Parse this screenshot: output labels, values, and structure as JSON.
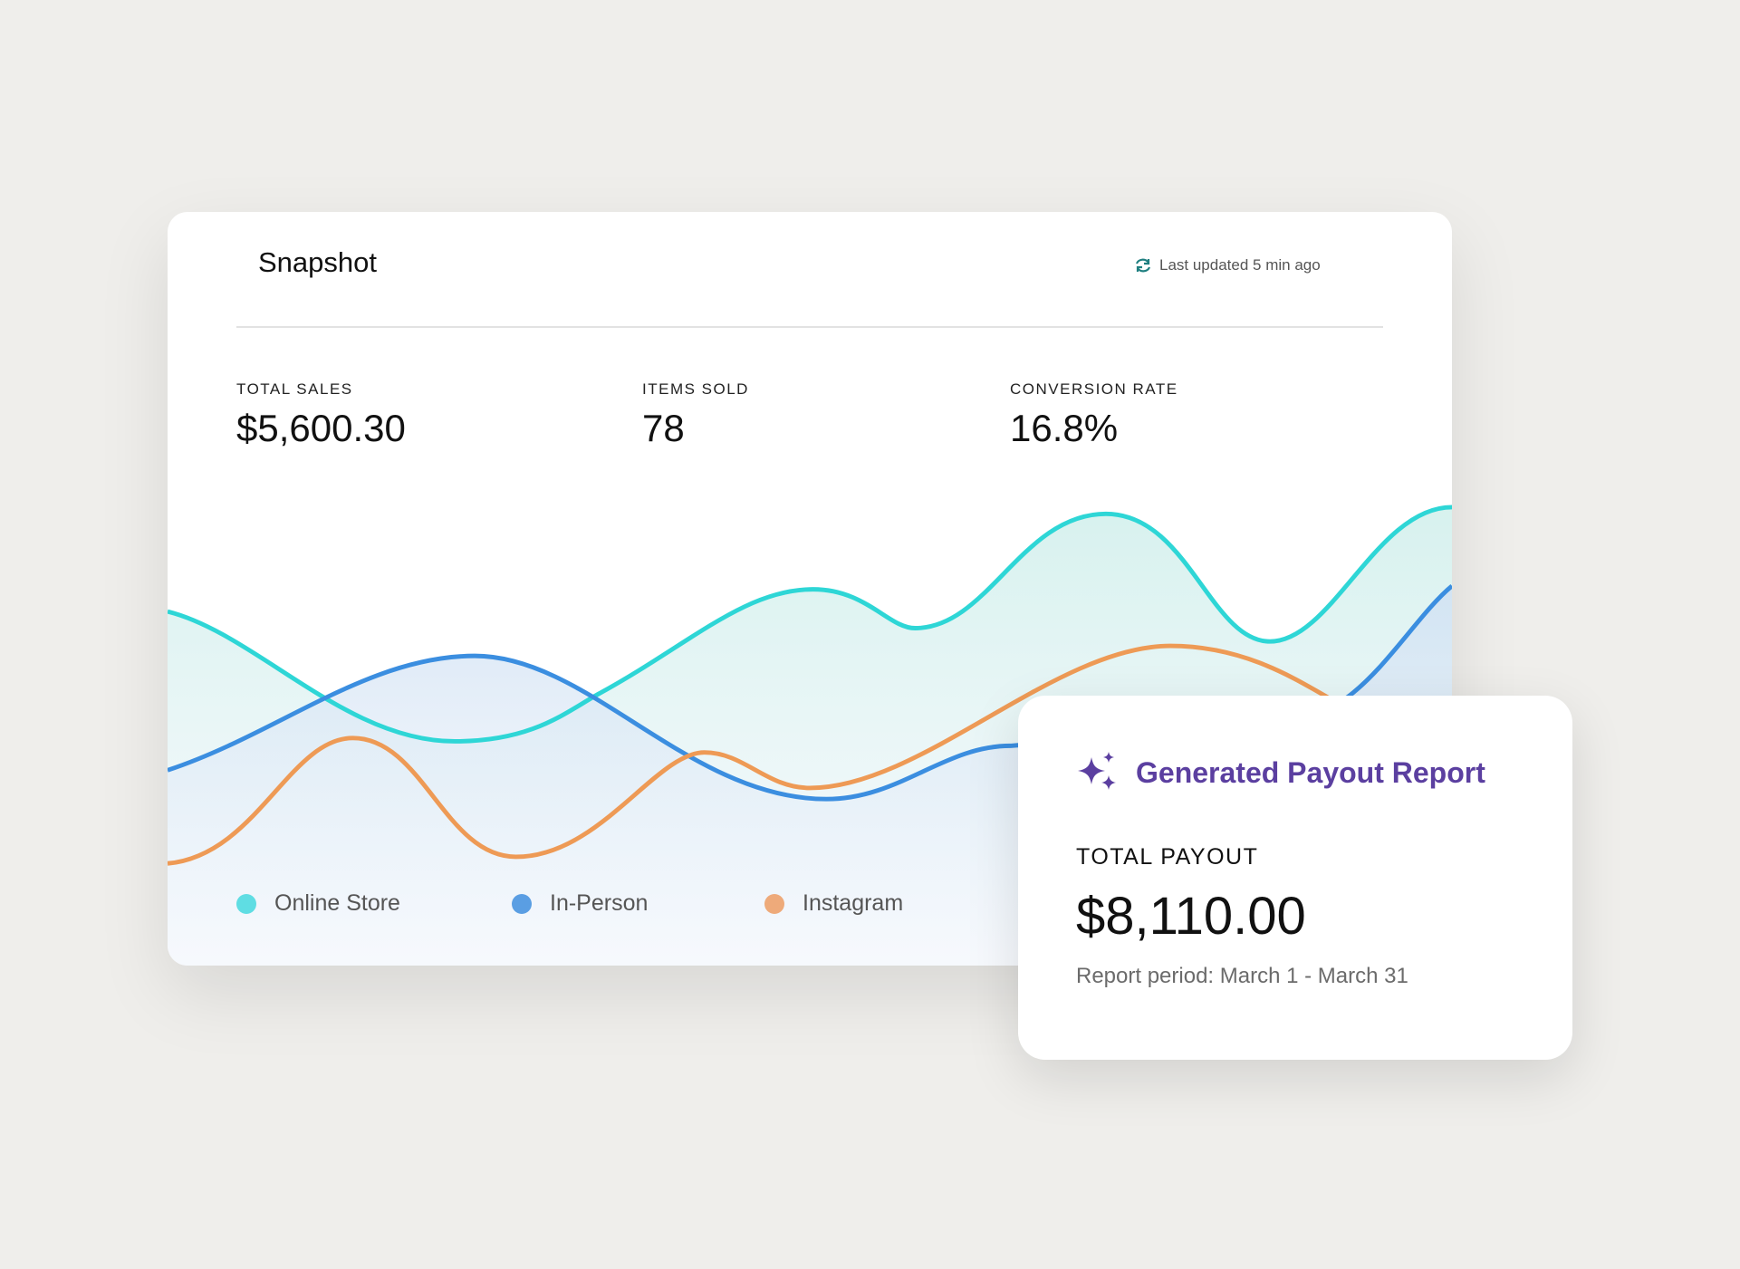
{
  "header": {
    "title": "Snapshot",
    "last_updated": "Last updated 5 min ago",
    "refresh_icon": "refresh-icon"
  },
  "stats": [
    {
      "label": "TOTAL SALES",
      "value": "$5,600.30"
    },
    {
      "label": "ITEMS SOLD",
      "value": "78"
    },
    {
      "label": "CONVERSION RATE",
      "value": "16.8%"
    }
  ],
  "legend": [
    {
      "label": "Online Store",
      "color": "#2ed6d6"
    },
    {
      "label": "In-Person",
      "color": "#3b8ee0"
    },
    {
      "label": "Instagram",
      "color": "#ee9a55"
    }
  ],
  "payout_card": {
    "icon": "sparkle-icon",
    "title": "Generated Payout Report",
    "label": "TOTAL PAYOUT",
    "amount": "$8,110.00",
    "period": "Report period: March 1 - March 31",
    "accent": "#5b3fa0"
  }
}
